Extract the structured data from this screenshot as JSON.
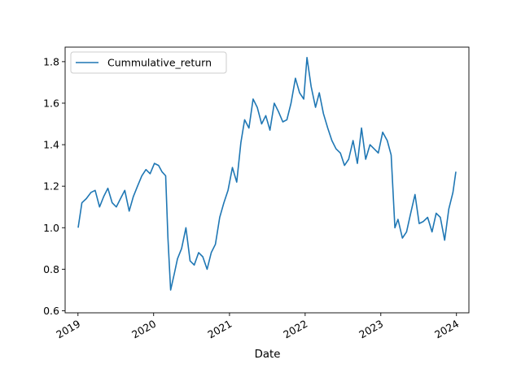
{
  "chart_data": {
    "type": "line",
    "title": "",
    "xlabel": "Date",
    "ylabel": "",
    "legend": {
      "placement": "top-left",
      "entries": [
        "Cummulative_return"
      ]
    },
    "grid": false,
    "xlim": [
      "2018-10-31",
      "2024-03-01"
    ],
    "ylim": [
      0.59,
      1.87
    ],
    "x_ticks": [
      "2019",
      "2020",
      "2021",
      "2022",
      "2023",
      "2024"
    ],
    "y_ticks": [
      "0.6",
      "0.8",
      "1.0",
      "1.2",
      "1.4",
      "1.6",
      "1.8"
    ],
    "series": [
      {
        "name": "Cummulative_return",
        "color": "#1f77b4",
        "x": [
          "2019-01-02",
          "2019-01-20",
          "2019-02-10",
          "2019-03-05",
          "2019-03-25",
          "2019-04-15",
          "2019-05-05",
          "2019-05-25",
          "2019-06-15",
          "2019-07-05",
          "2019-07-25",
          "2019-08-15",
          "2019-09-05",
          "2019-09-25",
          "2019-10-15",
          "2019-11-05",
          "2019-11-25",
          "2019-12-15",
          "2020-01-05",
          "2020-01-25",
          "2020-02-10",
          "2020-02-28",
          "2020-03-10",
          "2020-03-23",
          "2020-04-10",
          "2020-04-25",
          "2020-05-15",
          "2020-06-05",
          "2020-06-25",
          "2020-07-15",
          "2020-08-05",
          "2020-08-25",
          "2020-09-15",
          "2020-10-05",
          "2020-10-25",
          "2020-11-15",
          "2020-12-05",
          "2020-12-25",
          "2021-01-15",
          "2021-02-05",
          "2021-02-25",
          "2021-03-15",
          "2021-04-05",
          "2021-04-25",
          "2021-05-15",
          "2021-06-05",
          "2021-06-25",
          "2021-07-15",
          "2021-08-05",
          "2021-08-25",
          "2021-09-15",
          "2021-10-05",
          "2021-10-25",
          "2021-11-15",
          "2021-12-05",
          "2021-12-25",
          "2022-01-10",
          "2022-01-30",
          "2022-02-20",
          "2022-03-10",
          "2022-03-30",
          "2022-04-20",
          "2022-05-10",
          "2022-05-30",
          "2022-06-20",
          "2022-07-10",
          "2022-07-30",
          "2022-08-20",
          "2022-09-10",
          "2022-09-30",
          "2022-10-20",
          "2022-11-10",
          "2022-11-30",
          "2022-12-20",
          "2023-01-10",
          "2023-02-01",
          "2023-02-20",
          "2023-03-10",
          "2023-03-25",
          "2023-04-15",
          "2023-05-05",
          "2023-05-25",
          "2023-06-15",
          "2023-07-05",
          "2023-07-25",
          "2023-08-15",
          "2023-09-05",
          "2023-09-25",
          "2023-10-15",
          "2023-11-05",
          "2023-11-25",
          "2023-12-15",
          "2023-12-29"
        ],
        "values": [
          1.0,
          1.12,
          1.14,
          1.17,
          1.18,
          1.1,
          1.15,
          1.19,
          1.12,
          1.1,
          1.14,
          1.18,
          1.08,
          1.15,
          1.2,
          1.25,
          1.28,
          1.26,
          1.31,
          1.3,
          1.27,
          1.25,
          0.95,
          0.7,
          0.78,
          0.85,
          0.9,
          1.0,
          0.84,
          0.82,
          0.88,
          0.86,
          0.8,
          0.88,
          0.92,
          1.05,
          1.12,
          1.18,
          1.29,
          1.22,
          1.41,
          1.52,
          1.48,
          1.62,
          1.58,
          1.5,
          1.54,
          1.47,
          1.6,
          1.56,
          1.51,
          1.52,
          1.6,
          1.72,
          1.65,
          1.62,
          1.82,
          1.68,
          1.58,
          1.65,
          1.55,
          1.48,
          1.42,
          1.38,
          1.36,
          1.3,
          1.33,
          1.42,
          1.31,
          1.48,
          1.33,
          1.4,
          1.38,
          1.36,
          1.46,
          1.42,
          1.35,
          1.0,
          1.04,
          0.95,
          0.98,
          1.07,
          1.16,
          1.02,
          1.03,
          1.05,
          0.98,
          1.07,
          1.05,
          0.94,
          1.09,
          1.17,
          1.27
        ]
      }
    ]
  }
}
